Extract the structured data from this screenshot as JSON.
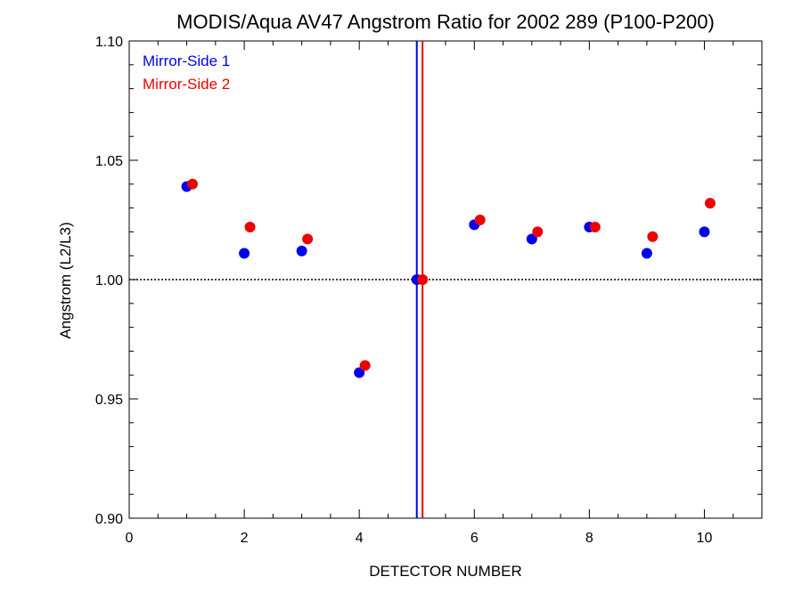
{
  "chart_data": {
    "type": "scatter",
    "title": "MODIS/Aqua AV47 Angstrom Ratio for 2002 289 (P100-P200)",
    "xlabel": "DETECTOR NUMBER",
    "ylabel": "Angstrom (L2/L3)",
    "xlim": [
      0,
      11
    ],
    "ylim": [
      0.9,
      1.1
    ],
    "x_ticks": [
      0,
      2,
      4,
      6,
      8,
      10
    ],
    "y_ticks": [
      0.9,
      0.95,
      1.0,
      1.05,
      1.1
    ],
    "x_tick_labels": [
      "0",
      "2",
      "4",
      "6",
      "8",
      "10"
    ],
    "y_tick_labels": [
      "0.90",
      "0.95",
      "1.00",
      "1.05",
      "1.10"
    ],
    "legend_position": "top-left",
    "grid": false,
    "reference_hline": 1.0,
    "reference_vlines": [
      {
        "x": 5.0,
        "color": "#0000ee"
      },
      {
        "x": 5.1,
        "color": "#ee0000"
      }
    ],
    "series": [
      {
        "name": "Mirror-Side 1",
        "color": "#0000ee",
        "x": [
          1,
          2,
          3,
          4,
          5,
          6,
          7,
          8,
          9,
          10
        ],
        "y": [
          1.039,
          1.011,
          1.012,
          0.961,
          1.0,
          1.023,
          1.017,
          1.022,
          1.011,
          1.02
        ]
      },
      {
        "name": "Mirror-Side 2",
        "color": "#ee0000",
        "x": [
          1.1,
          2.1,
          3.1,
          4.1,
          5.1,
          6.1,
          7.1,
          8.1,
          9.1,
          10.1
        ],
        "y": [
          1.04,
          1.022,
          1.017,
          0.964,
          1.0,
          1.025,
          1.02,
          1.022,
          1.018,
          1.032
        ]
      }
    ]
  }
}
